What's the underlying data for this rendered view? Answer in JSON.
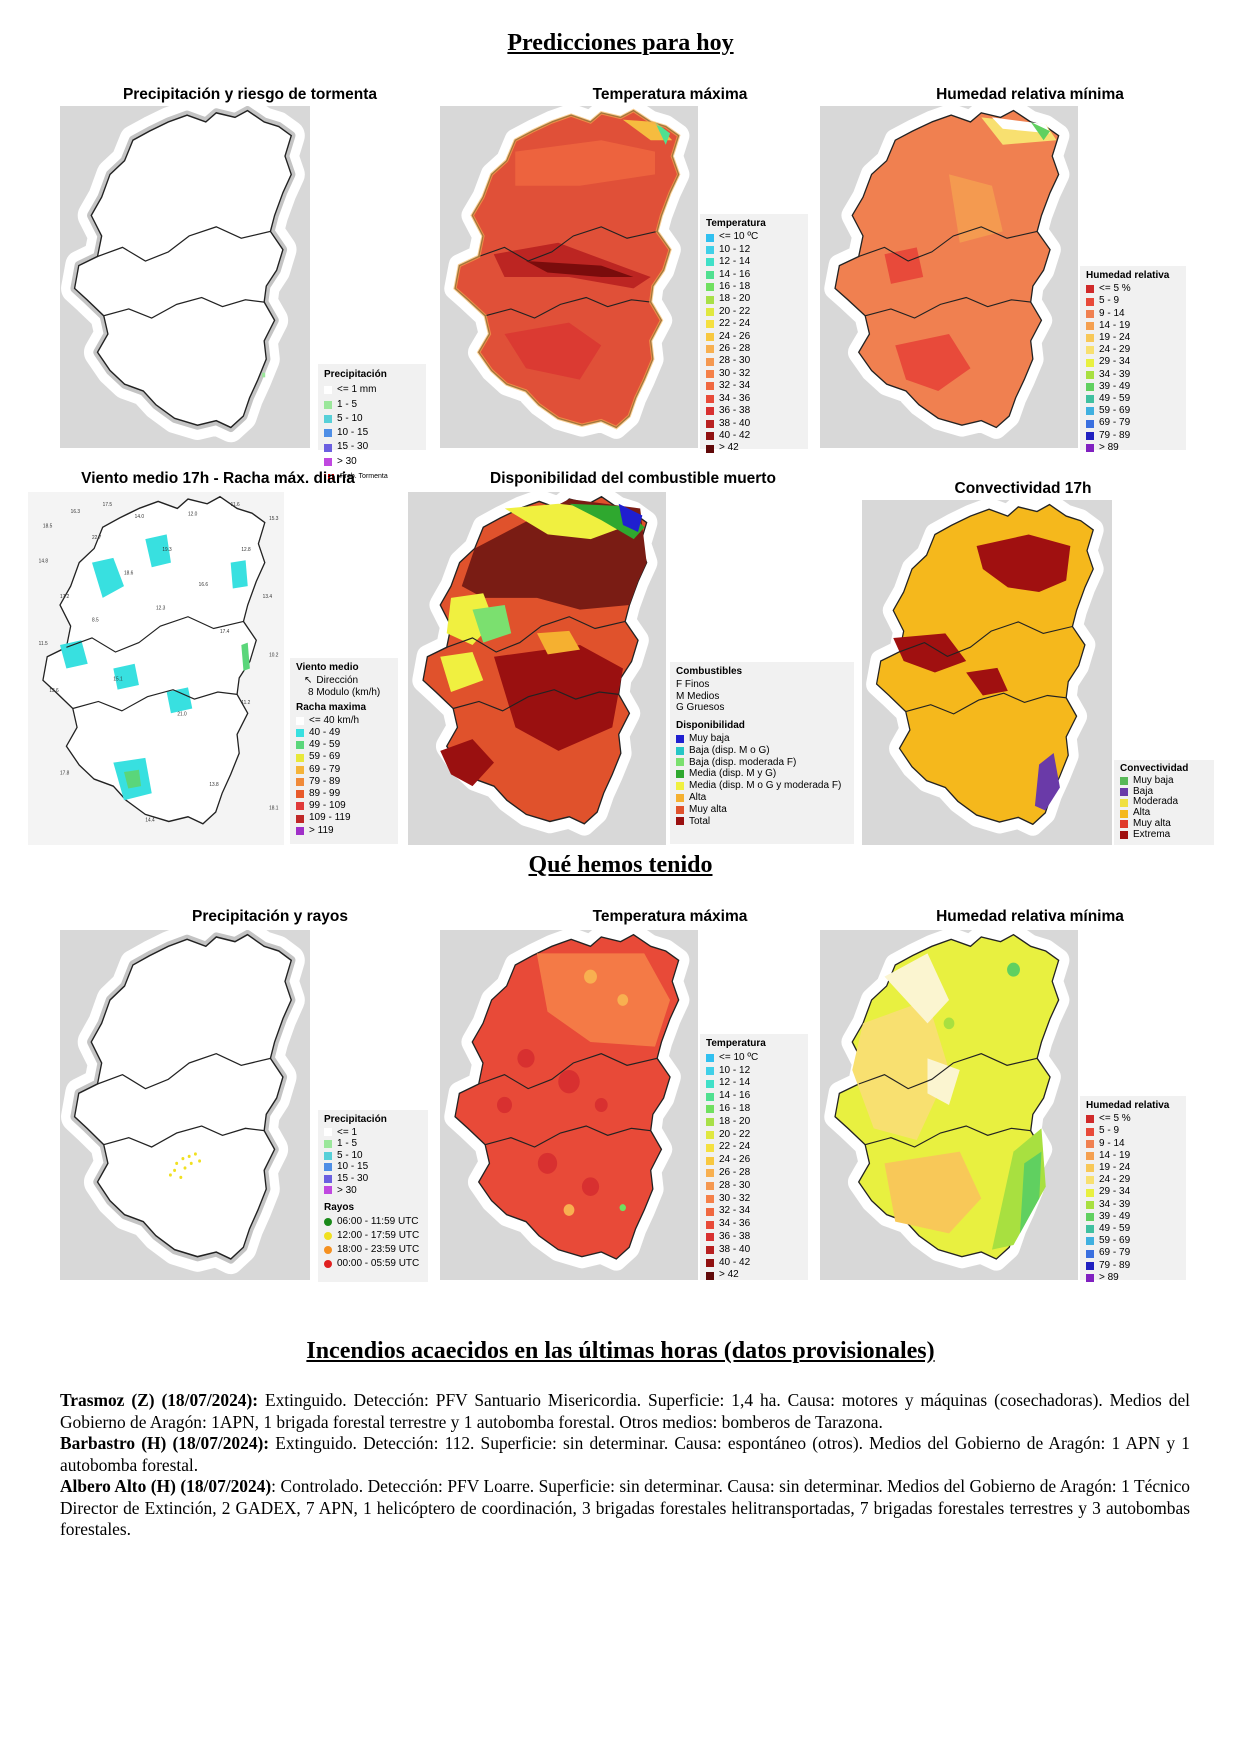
{
  "sections": {
    "forecast_title": "Predicciones para hoy",
    "observed_title": "Qué hemos tenido",
    "fires_title": "Incendios acaecidos en las últimas horas (datos provisionales)"
  },
  "panels": {
    "precip_forecast": {
      "title": "Precipitación y riesgo de tormenta",
      "legend_title": "Precipitación",
      "legend": [
        {
          "label": "<= 1 mm",
          "color": "#ffffff"
        },
        {
          "label": "1 - 5",
          "color": "#9be79b"
        },
        {
          "label": "5 - 10",
          "color": "#57d0d8"
        },
        {
          "label": "10 - 15",
          "color": "#4e8ee6"
        },
        {
          "label": "15 - 30",
          "color": "#6b5fe0"
        },
        {
          "label": "> 30",
          "color": "#c048e0"
        }
      ],
      "storm_label": "Prob. Tormenta"
    },
    "tmax_forecast": {
      "title": "Temperatura máxima",
      "legend_title": "Temperatura"
    },
    "hr_forecast": {
      "title": "Humedad relativa mínima",
      "legend_title": "Humedad relativa"
    },
    "wind": {
      "title": "Viento medio 17h - Racha máx. diaria",
      "legend_title": "Viento medio",
      "dir_label": "Dirección",
      "mod_label": "8 Modulo (km/h)",
      "gust_title": "Racha maxima",
      "legend": [
        {
          "label": "<= 40 km/h",
          "color": "#ffffff"
        },
        {
          "label": "40 - 49",
          "color": "#38e0e0"
        },
        {
          "label": "49 - 59",
          "color": "#5ad67a"
        },
        {
          "label": "59 - 69",
          "color": "#e8e83a"
        },
        {
          "label": "69 - 79",
          "color": "#f5b43a"
        },
        {
          "label": "79 - 89",
          "color": "#f08a3a"
        },
        {
          "label": "89 - 99",
          "color": "#e85a2a"
        },
        {
          "label": "99 - 109",
          "color": "#e03a3a"
        },
        {
          "label": "109 - 119",
          "color": "#c02828"
        },
        {
          "label": "> 119",
          "color": "#a030c8"
        }
      ],
      "labels": [
        "18.5",
        "16.3",
        "17.5",
        "14.0",
        "12.0",
        "11.6",
        "15.3",
        "14.8",
        "22.7",
        "19.3",
        "12.8",
        "17.2",
        "18.6",
        "16.6",
        "13.4",
        "11.5",
        "8.5",
        "12.3",
        "17.4",
        "10.2",
        "13.6",
        "15.1",
        "21.0",
        "11.2",
        "17.8",
        "14.4",
        "13.8",
        "18.1"
      ]
    },
    "fuel": {
      "title": "Disponibilidad del combustible muerto",
      "comb_title": "Combustibles",
      "comb_items": [
        "F Finos",
        "M Medios",
        "G Gruesos"
      ],
      "legend_title": "Disponibilidad",
      "legend": [
        {
          "label": "Muy baja",
          "color": "#1f1fd0"
        },
        {
          "label": "Baja (disp. M o G)",
          "color": "#26c6c6"
        },
        {
          "label": "Baja (disp. moderada F)",
          "color": "#7be06f"
        },
        {
          "label": "Media (disp. M y G)",
          "color": "#2fa82f"
        },
        {
          "label": "Media (disp. M o G y moderada F)",
          "color": "#f0f040"
        },
        {
          "label": "Alta",
          "color": "#f5b030"
        },
        {
          "label": "Muy alta",
          "color": "#e0522c"
        },
        {
          "label": "Total",
          "color": "#9a1010"
        }
      ]
    },
    "convect": {
      "title": "Convectividad 17h",
      "legend_title": "Convectividad",
      "legend": [
        {
          "label": "Muy baja",
          "color": "#58b858"
        },
        {
          "label": "Baja",
          "color": "#6a3aa8"
        },
        {
          "label": "Moderada",
          "color": "#f0e040"
        },
        {
          "label": "Alta",
          "color": "#f5b81c"
        },
        {
          "label": "Muy alta",
          "color": "#e03a2a"
        },
        {
          "label": "Extrema",
          "color": "#a01010"
        }
      ]
    },
    "precip_observed": {
      "title": "Precipitación y rayos",
      "legend_title": "Precipitación",
      "legend": [
        {
          "label": "<= 1",
          "color": "#ffffff"
        },
        {
          "label": "1 - 5",
          "color": "#9be79b"
        },
        {
          "label": "5 - 10",
          "color": "#57d0d8"
        },
        {
          "label": "10 - 15",
          "color": "#4e8ee6"
        },
        {
          "label": "15 - 30",
          "color": "#6b5fe0"
        },
        {
          "label": "> 30",
          "color": "#c048e0"
        }
      ],
      "rayos_title": "Rayos",
      "rayos": [
        {
          "label": "06:00 - 11:59 UTC",
          "color": "#1a8a1a"
        },
        {
          "label": "12:00 - 17:59 UTC",
          "color": "#f0e020"
        },
        {
          "label": "18:00 - 23:59 UTC",
          "color": "#f59020"
        },
        {
          "label": "00:00 - 05:59 UTC",
          "color": "#e02020"
        }
      ]
    },
    "tmax_observed": {
      "title": "Temperatura máxima",
      "legend_title": "Temperatura"
    },
    "hr_observed": {
      "title": "Humedad relativa mínima",
      "legend_title": "Humedad relativa"
    }
  },
  "temp_legend": [
    {
      "label": "<= 10 ºC",
      "color": "#30c0f0"
    },
    {
      "label": "10 - 12",
      "color": "#40d0e8"
    },
    {
      "label": "12 - 14",
      "color": "#40e0c8"
    },
    {
      "label": "14 - 16",
      "color": "#50e090"
    },
    {
      "label": "16 - 18",
      "color": "#70e060"
    },
    {
      "label": "18 - 20",
      "color": "#a8e048"
    },
    {
      "label": "20 - 22",
      "color": "#e0e840"
    },
    {
      "label": "22 - 24",
      "color": "#f5e040"
    },
    {
      "label": "24 - 26",
      "color": "#f8c840"
    },
    {
      "label": "26 - 28",
      "color": "#f8b050"
    },
    {
      "label": "28 - 30",
      "color": "#f59850"
    },
    {
      "label": "30 - 32",
      "color": "#f58048"
    },
    {
      "label": "32 - 34",
      "color": "#f06840"
    },
    {
      "label": "34 - 36",
      "color": "#e84a38"
    },
    {
      "label": "36 - 38",
      "color": "#d83030"
    },
    {
      "label": "38 - 40",
      "color": "#b82020"
    },
    {
      "label": "40 - 42",
      "color": "#901010"
    },
    {
      "label": "> 42",
      "color": "#600808"
    }
  ],
  "hr_legend": [
    {
      "label": "<= 5 %",
      "color": "#d02a2a"
    },
    {
      "label": "5 - 9",
      "color": "#e84a3a"
    },
    {
      "label": "9 - 14",
      "color": "#f08050"
    },
    {
      "label": "14 - 19",
      "color": "#f5a050"
    },
    {
      "label": "19 - 24",
      "color": "#f8c858"
    },
    {
      "label": "24 - 29",
      "color": "#f8e070"
    },
    {
      "label": "29 - 34",
      "color": "#e8f040"
    },
    {
      "label": "34 - 39",
      "color": "#a8e040"
    },
    {
      "label": "39 - 49",
      "color": "#60d060"
    },
    {
      "label": "49 - 59",
      "color": "#40c0a0"
    },
    {
      "label": "59 - 69",
      "color": "#40b0e0"
    },
    {
      "label": "69 - 79",
      "color": "#3a70e0"
    },
    {
      "label": "79 - 89",
      "color": "#2020c0"
    },
    {
      "label": "> 89",
      "color": "#8020c0"
    }
  ],
  "fires": [
    {
      "head": "Trasmoz (Z) (18/07/2024):",
      "text": " Extinguido. Detección: PFV Santuario Misericordia. Superficie: 1,4 ha. Causa: motores y máquinas (cosechadoras). Medios del Gobierno de Aragón: 1APN, 1 brigada forestal terrestre y 1 autobomba forestal. Otros medios: bomberos de Tarazona."
    },
    {
      "head": "Barbastro (H) (18/07/2024):",
      "text": " Extinguido. Detección: 112. Superficie: sin determinar. Causa: espontáneo (otros). Medios del Gobierno de Aragón: 1 APN y 1 autobomba forestal."
    },
    {
      "head": "Albero Alto (H) (18/07/2024)",
      "text": ": Controlado. Detección: PFV Loarre. Superficie: sin determinar. Causa: sin determinar. Medios del Gobierno de Aragón: 1 Técnico Director de Extinción, 2 GADEX, 7 APN, 1 helicóptero de coordinación, 3 brigadas forestales helitransportadas, 7 brigadas forestales terrestres y 3 autobombas forestales."
    }
  ]
}
